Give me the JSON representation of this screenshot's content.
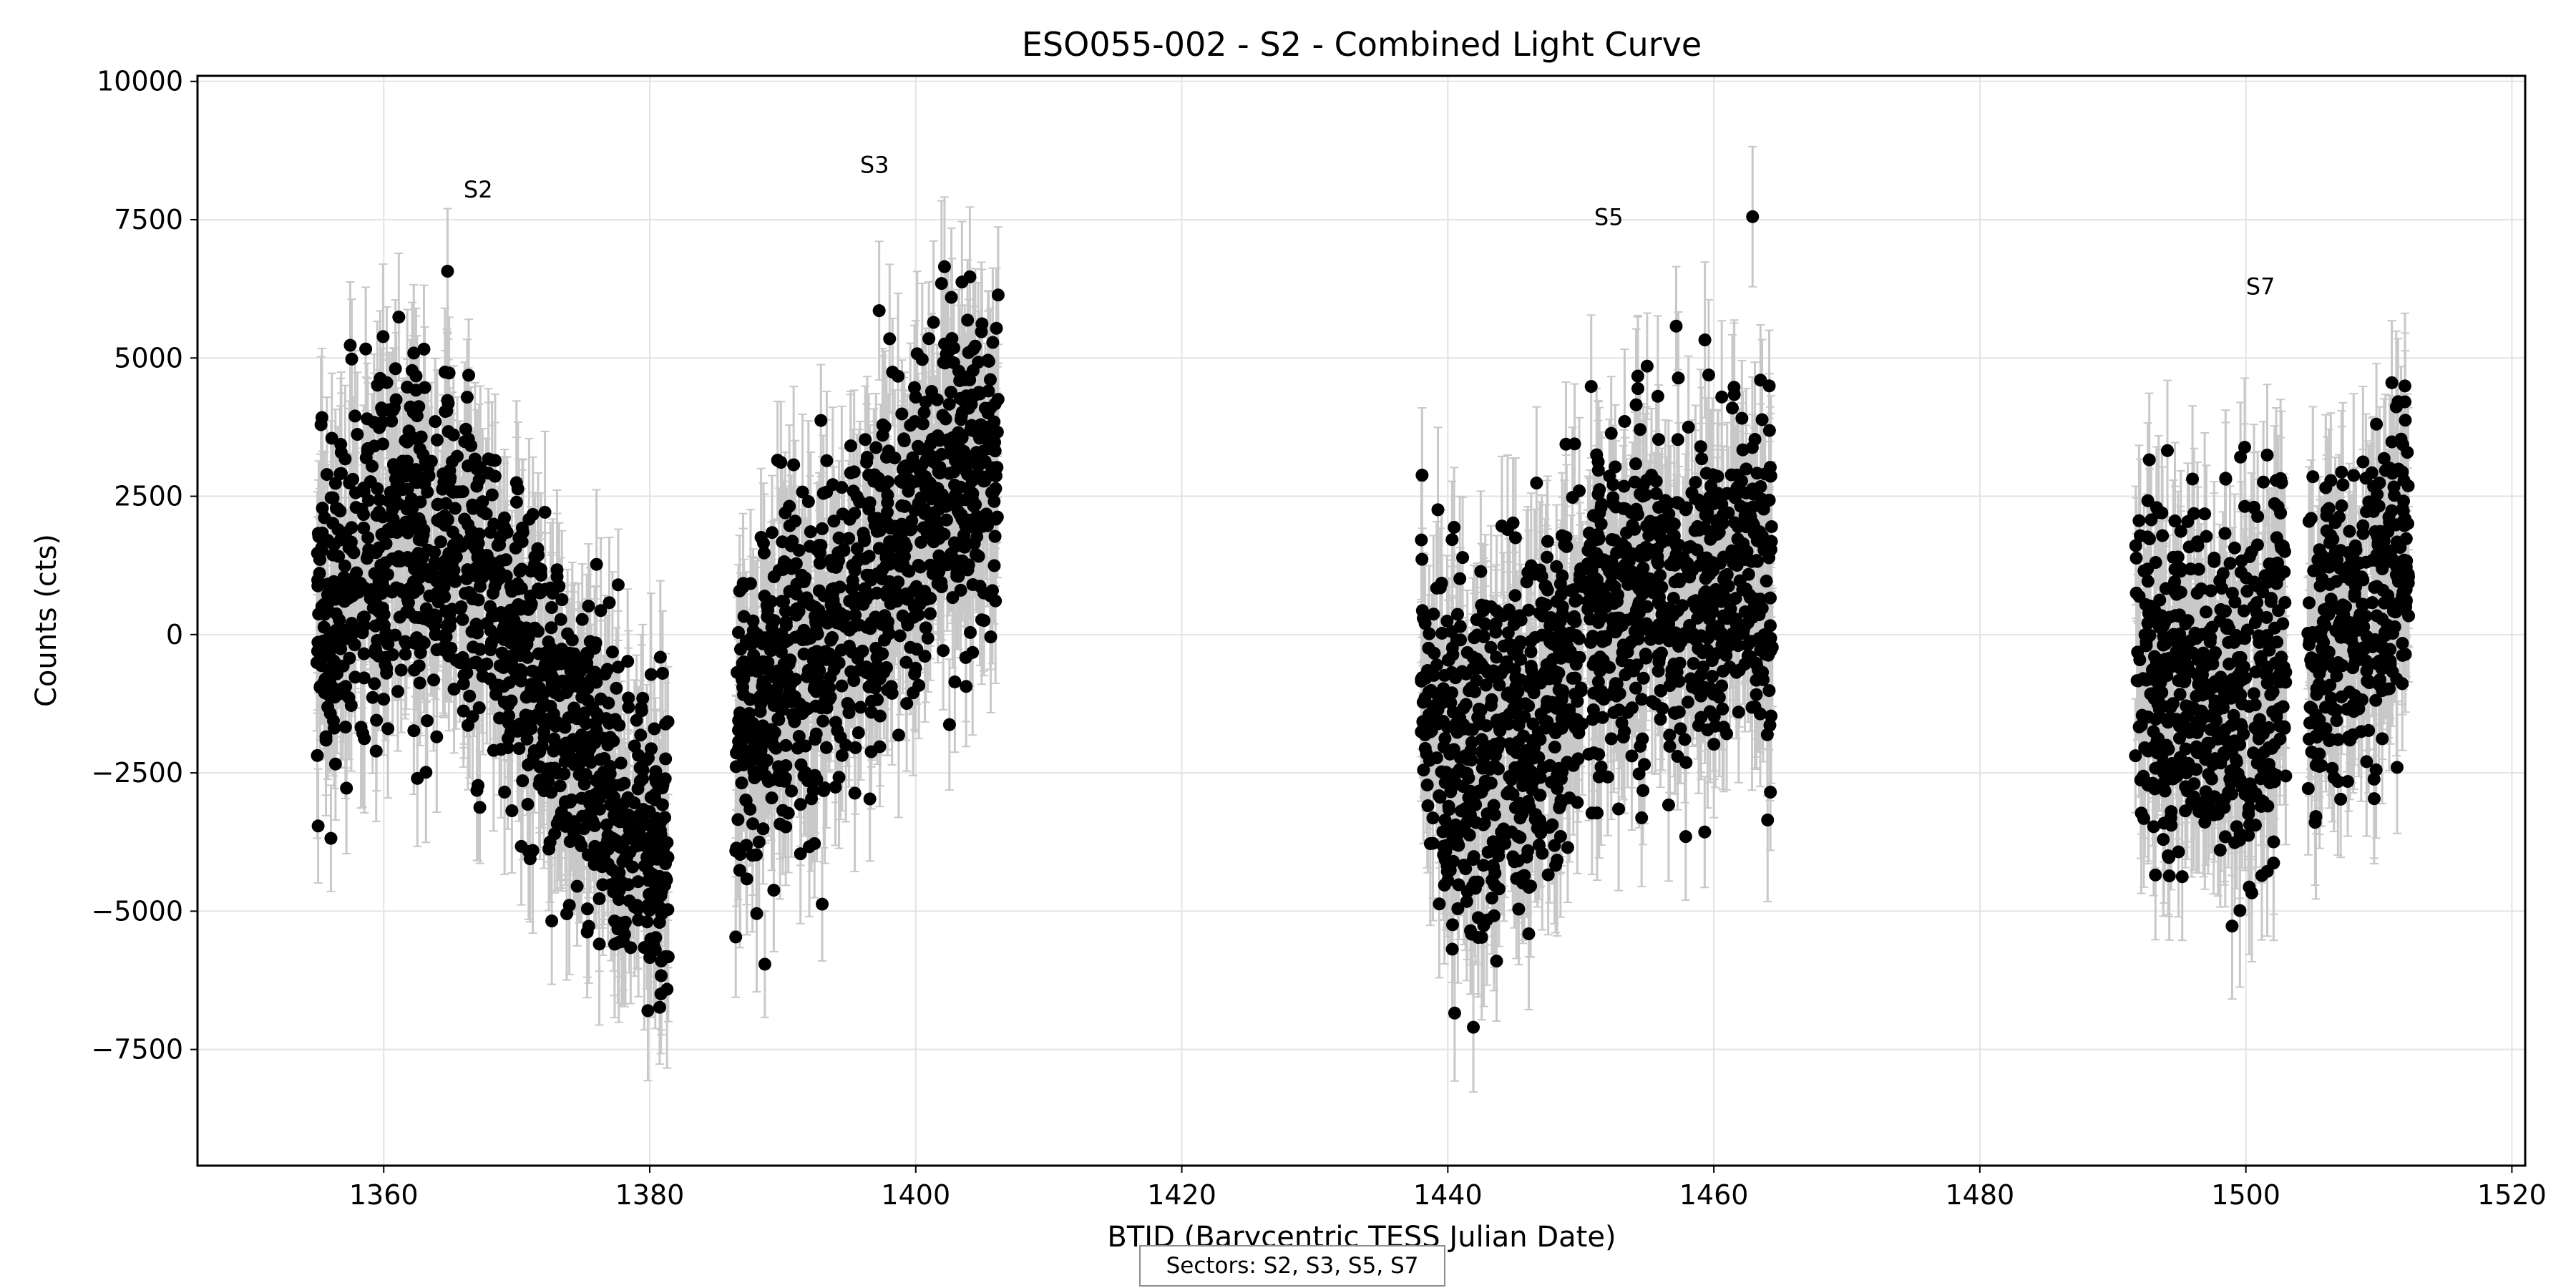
{
  "chart_data": {
    "type": "scatter",
    "title": "ESO055-002 - S2 - Combined Light Curve",
    "xlabel": "BTJD (Barycentric TESS Julian Date)",
    "ylabel": "Counts (cts)",
    "xlim": [
      1346,
      1521
    ],
    "ylim": [
      -9600,
      10100
    ],
    "xticks": [
      1360,
      1380,
      1400,
      1420,
      1440,
      1460,
      1480,
      1500,
      1520
    ],
    "yticks": [
      -7500,
      -5000,
      -2500,
      0,
      2500,
      5000,
      7500,
      10000
    ],
    "grid": true,
    "marker_color": "#000000",
    "errorbar_color": "#c8c8c8",
    "typical_error": 1200,
    "sectors": [
      {
        "name": "S2",
        "label_x": 1367.1,
        "label_y": 7900,
        "segments": [
          {
            "x": [
              1354.9,
              1367.5
            ],
            "trend": [
              0,
              1200,
              1800,
              1500,
              1200
            ],
            "spread": 2600
          },
          {
            "x": [
              1367.7,
              1381.4
            ],
            "trend": [
              800,
              -500,
              -1800,
              -3300,
              -4300
            ],
            "spread": 2200
          }
        ]
      },
      {
        "name": "S3",
        "label_x": 1396.9,
        "label_y": 8350,
        "segments": [
          {
            "x": [
              1386.4,
              1395.9
            ],
            "trend": [
              -1800,
              -1100,
              -600,
              0,
              600
            ],
            "spread": 2300
          },
          {
            "x": [
              1396.0,
              1406.2
            ],
            "trend": [
              400,
              1500,
              2300,
              2700,
              3000
            ],
            "spread": 2400
          }
        ]
      },
      {
        "name": "S5",
        "label_x": 1452.1,
        "label_y": 7400,
        "segments": [
          {
            "x": [
              1438.0,
              1450.2
            ],
            "trend": [
              -1000,
              -2500,
              -2000,
              -1300,
              0
            ],
            "spread": 2600
          },
          {
            "x": [
              1450.5,
              1464.4
            ],
            "trend": [
              200,
              1000,
              600,
              800,
              1000
            ],
            "spread": 2500
          }
        ]
      },
      {
        "name": "S7",
        "label_x": 1501.1,
        "label_y": 6150,
        "segments": [
          {
            "x": [
              1491.7,
              1503.0
            ],
            "trend": [
              -300,
              -800,
              -1100,
              -900,
              -600
            ],
            "spread": 2700
          },
          {
            "x": [
              1504.6,
              1512.3
            ],
            "trend": [
              -800,
              -200,
              300,
              800,
              1300
            ],
            "spread": 2400
          }
        ]
      }
    ],
    "legend": {
      "placement": "bottom-center",
      "text": "Sectors: S2, S3, S5, S7"
    }
  }
}
